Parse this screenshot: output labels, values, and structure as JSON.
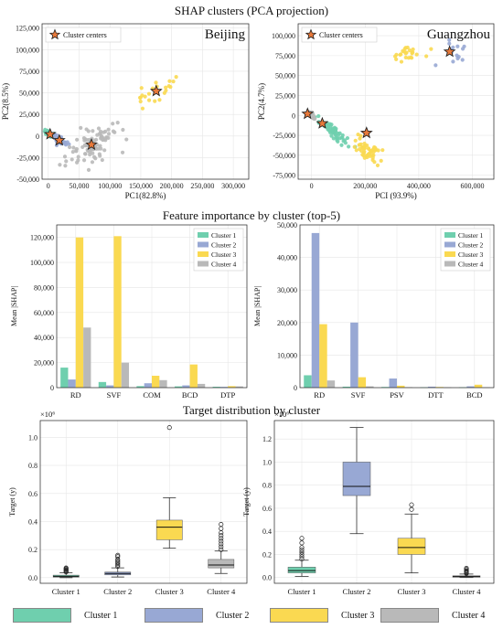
{
  "colors": {
    "cluster1": "#6fcfae",
    "cluster2": "#98a8d4",
    "cluster3": "#fad951",
    "cluster4": "#b9b9b9",
    "center_fill": "#e8793a",
    "grid": "#e6e6e6"
  },
  "section_titles": {
    "pca": "SHAP clusters (PCA projection)",
    "importance": "Feature importance by cluster (top-5)",
    "target": "Target distribution by cluster"
  },
  "bottom_legend": [
    {
      "label": "Cluster 1",
      "color_key": "cluster1"
    },
    {
      "label": "Cluster 2",
      "color_key": "cluster2"
    },
    {
      "label": "Cluster 3",
      "color_key": "cluster3"
    },
    {
      "label": "Cluster 4",
      "color_key": "cluster4"
    }
  ],
  "chart_data": [
    {
      "id": "pca_beijing",
      "type": "scatter",
      "city": "Beijing",
      "xlabel": "PC1(82.8%)",
      "ylabel": "PC2(8.5%)",
      "xlim": [
        -10000,
        325000
      ],
      "ylim": [
        -50000,
        130000
      ],
      "xticks": [
        0,
        50000,
        100000,
        150000,
        200000,
        250000,
        300000
      ],
      "xtick_labels": [
        "0",
        "50,000",
        "100,000",
        "150,000",
        "200,000",
        "250,000",
        "300,000"
      ],
      "yticks": [
        -50000,
        -25000,
        0,
        25000,
        50000,
        75000,
        100000,
        125000
      ],
      "ytick_labels": [
        "-50,000",
        "-25,000",
        "0",
        "25,000",
        "50,000",
        "75,000",
        "100,000",
        "125,000"
      ],
      "legend_label": "Cluster centers",
      "legend_position": "top-left",
      "grid": true,
      "clusters": [
        {
          "name": "Cluster 1",
          "color_key": "cluster1",
          "center": [
            3000,
            2000
          ],
          "n": 30,
          "spread": [
            9000,
            4000
          ],
          "slope": -0.3
        },
        {
          "name": "Cluster 2",
          "color_key": "cluster2",
          "center": [
            18000,
            -5000
          ],
          "n": 35,
          "spread": [
            14000,
            5000
          ],
          "slope": -0.35
        },
        {
          "name": "Cluster 3",
          "color_key": "cluster3",
          "center": [
            175000,
            52000
          ],
          "n": 22,
          "spread": [
            40000,
            18000
          ],
          "slope": 0.4
        },
        {
          "name": "Cluster 4",
          "color_key": "cluster4",
          "center": [
            70000,
            -10000
          ],
          "n": 90,
          "spread": [
            40000,
            22000
          ],
          "slope": 0.25
        }
      ],
      "centers": [
        [
          3000,
          2000
        ],
        [
          18000,
          -5000
        ],
        [
          175000,
          52000
        ],
        [
          70000,
          -10000
        ]
      ]
    },
    {
      "id": "pca_guangzhou",
      "type": "scatter",
      "city": "Guangzhou",
      "xlabel": "PCI (93.9%)",
      "ylabel": "PC2(4.7%)",
      "xlim": [
        -50000,
        680000
      ],
      "ylim": [
        -80000,
        115000
      ],
      "xticks": [
        0,
        200000,
        400000,
        600000
      ],
      "xtick_labels": [
        "0",
        "200,000",
        "400,000",
        "600,000"
      ],
      "yticks": [
        -75000,
        -50000,
        -25000,
        0,
        25000,
        50000,
        75000,
        100000
      ],
      "ytick_labels": [
        "-75,000",
        "-50,000",
        "-25,000",
        "0",
        "25,000",
        "50,000",
        "75,000",
        "100,000"
      ],
      "legend_label": "Cluster centers",
      "legend_position": "top-left",
      "grid": true,
      "clusters": [
        {
          "name": "Cluster 1",
          "color_key": "cluster1",
          "center": [
            80000,
            -20000
          ],
          "n": 60,
          "spread": [
            60000,
            8000
          ],
          "slope": -0.28
        },
        {
          "name": "Cluster 2",
          "color_key": "cluster2",
          "center": [
            530000,
            80000
          ],
          "n": 14,
          "spread": [
            60000,
            15000
          ],
          "slope": 0.1
        },
        {
          "name": "Cluster 3",
          "color_key": "cluster3",
          "center": [
            210000,
            -45000
          ],
          "n": 55,
          "spread": [
            50000,
            12000
          ],
          "slope": -0.2
        },
        {
          "name": "Cluster 4",
          "color_key": "cluster4",
          "center": [
            0,
            0
          ],
          "n": 10,
          "spread": [
            15000,
            4000
          ],
          "slope": -0.3
        }
      ],
      "extra_cluster3": {
        "center": [
          350000,
          75000
        ],
        "n": 25,
        "spread": [
          60000,
          15000
        ]
      },
      "centers": [
        [
          -15000,
          2000
        ],
        [
          40000,
          -10000
        ],
        [
          205000,
          -22000
        ],
        [
          515000,
          80000
        ]
      ]
    },
    {
      "id": "importance_beijing",
      "type": "bar",
      "ylabel": "Mean |SHAP|",
      "categories": [
        "RD",
        "SVF",
        "COM",
        "BCD",
        "DTP"
      ],
      "ylim": [
        0,
        130000
      ],
      "yticks": [
        0,
        20000,
        40000,
        60000,
        80000,
        100000,
        120000
      ],
      "ytick_labels": [
        "0",
        "20,000",
        "40,000",
        "60,000",
        "80,000",
        "100,000",
        "120,000"
      ],
      "legend_position": "top-right",
      "grid": true,
      "series": [
        {
          "name": "Cluster 1",
          "color_key": "cluster1",
          "values": [
            16000,
            4500,
            1200,
            1000,
            700
          ]
        },
        {
          "name": "Cluster 2",
          "color_key": "cluster2",
          "values": [
            6500,
            1800,
            3500,
            1800,
            600
          ]
        },
        {
          "name": "Cluster 3",
          "color_key": "cluster3",
          "values": [
            120000,
            121000,
            9500,
            18500,
            1200
          ]
        },
        {
          "name": "Cluster 4",
          "color_key": "cluster4",
          "values": [
            48000,
            20000,
            6000,
            3000,
            1000
          ]
        }
      ]
    },
    {
      "id": "importance_guangzhou",
      "type": "bar",
      "ylabel": "Mean |SHAP|",
      "categories": [
        "RD",
        "SVF",
        "PSV",
        "DTT",
        "BCD"
      ],
      "ylim": [
        0,
        50000
      ],
      "yticks": [
        0,
        10000,
        20000,
        30000,
        40000,
        50000
      ],
      "ytick_labels": [
        "0",
        "10,000",
        "20,000",
        "30,000",
        "40,000",
        "50,000"
      ],
      "legend_position": "top-right",
      "grid": true,
      "series": [
        {
          "name": "Cluster 1",
          "color_key": "cluster1",
          "values": [
            3800,
            300,
            200,
            100,
            100
          ]
        },
        {
          "name": "Cluster 2",
          "color_key": "cluster2",
          "values": [
            47500,
            20000,
            2800,
            300,
            400
          ]
        },
        {
          "name": "Cluster 3",
          "color_key": "cluster3",
          "values": [
            19500,
            3200,
            600,
            200,
            900
          ]
        },
        {
          "name": "Cluster 4",
          "color_key": "cluster4",
          "values": [
            2200,
            400,
            150,
            100,
            100
          ]
        }
      ]
    },
    {
      "id": "target_beijing",
      "type": "box",
      "ylabel": "Target (y)",
      "scale_label": "×10⁶",
      "categories": [
        "Cluster 1",
        "Cluster 2",
        "Cluster 3",
        "Cluster 4"
      ],
      "ylim": [
        -0.04,
        1.12
      ],
      "yticks": [
        0.0,
        0.2,
        0.4,
        0.6,
        0.8,
        1.0
      ],
      "ytick_labels": [
        "0.0",
        "0.2",
        "0.4",
        "0.6",
        "0.8",
        "1.0"
      ],
      "grid": true,
      "boxes": [
        {
          "color_key": "cluster1",
          "whislo": 0.0,
          "q1": 0.004,
          "med": 0.01,
          "q3": 0.018,
          "whishi": 0.035,
          "fliers": [
            0.04,
            0.045,
            0.05,
            0.055,
            0.06,
            0.065,
            0.07
          ]
        },
        {
          "color_key": "cluster2",
          "whislo": 0.005,
          "q1": 0.02,
          "med": 0.03,
          "q3": 0.04,
          "whishi": 0.07,
          "fliers": [
            0.08,
            0.09,
            0.1,
            0.11,
            0.12,
            0.13,
            0.15,
            0.16
          ]
        },
        {
          "color_key": "cluster3",
          "whislo": 0.21,
          "q1": 0.27,
          "med": 0.36,
          "q3": 0.41,
          "whishi": 0.57,
          "fliers": [
            1.07
          ]
        },
        {
          "color_key": "cluster4",
          "whislo": 0.03,
          "q1": 0.07,
          "med": 0.09,
          "q3": 0.13,
          "whishi": 0.19,
          "fliers": [
            0.2,
            0.22,
            0.24,
            0.26,
            0.28,
            0.3,
            0.32,
            0.35,
            0.38
          ]
        }
      ]
    },
    {
      "id": "target_guangzhou",
      "type": "box",
      "ylabel": "Target (y)",
      "scale_label": "×10⁶",
      "categories": [
        "Cluster 1",
        "Cluster 2",
        "Cluster 3",
        "Cluster 4"
      ],
      "ylim": [
        -0.05,
        1.36
      ],
      "yticks": [
        0.0,
        0.2,
        0.4,
        0.6,
        0.8,
        1.0,
        1.2
      ],
      "ytick_labels": [
        "0.0",
        "0.2",
        "0.4",
        "0.6",
        "0.8",
        "1.0",
        "1.2"
      ],
      "grid": true,
      "boxes": [
        {
          "color_key": "cluster1",
          "whislo": 0.01,
          "q1": 0.04,
          "med": 0.06,
          "q3": 0.09,
          "whishi": 0.15,
          "fliers": [
            0.16,
            0.18,
            0.2,
            0.22,
            0.24,
            0.26,
            0.3,
            0.34
          ]
        },
        {
          "color_key": "cluster2",
          "whislo": 0.38,
          "q1": 0.71,
          "med": 0.79,
          "q3": 1.0,
          "whishi": 1.3,
          "fliers": []
        },
        {
          "color_key": "cluster3",
          "whislo": 0.04,
          "q1": 0.2,
          "med": 0.26,
          "q3": 0.34,
          "whishi": 0.55,
          "fliers": [
            0.59,
            0.63
          ]
        },
        {
          "color_key": "cluster4",
          "whislo": 0.0,
          "q1": 0.003,
          "med": 0.008,
          "q3": 0.015,
          "whishi": 0.03,
          "fliers": [
            0.035,
            0.04,
            0.045,
            0.05,
            0.055,
            0.06,
            0.07,
            0.08
          ]
        }
      ]
    }
  ]
}
